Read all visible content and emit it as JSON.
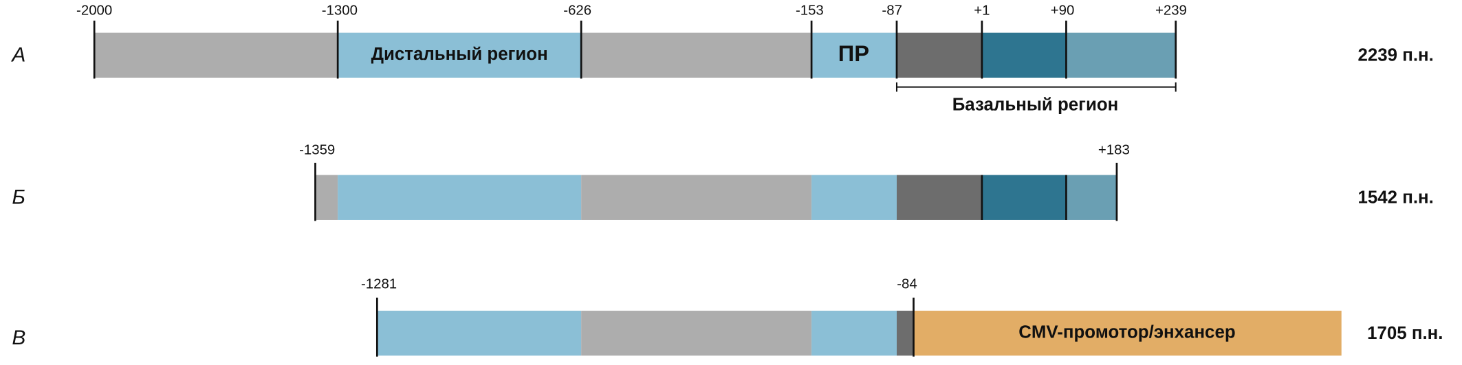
{
  "rows": [
    {
      "label": "А",
      "size": "2239 п.н.",
      "ticks": [
        "-2000",
        "-1300",
        "-626",
        "-153",
        "-87",
        "+1",
        "+90",
        "+239"
      ],
      "regions": [
        "Дистальный регион",
        "ПР"
      ],
      "bracket": "Базальный регион"
    },
    {
      "label": "Б",
      "size": "1542 п.н.",
      "ticks": [
        "-1359",
        "+183"
      ]
    },
    {
      "label": "В",
      "size": "1705 п.н.",
      "ticks": [
        "-1281",
        "-84"
      ],
      "regions": [
        "CMV-промотор/энхансер"
      ]
    }
  ]
}
